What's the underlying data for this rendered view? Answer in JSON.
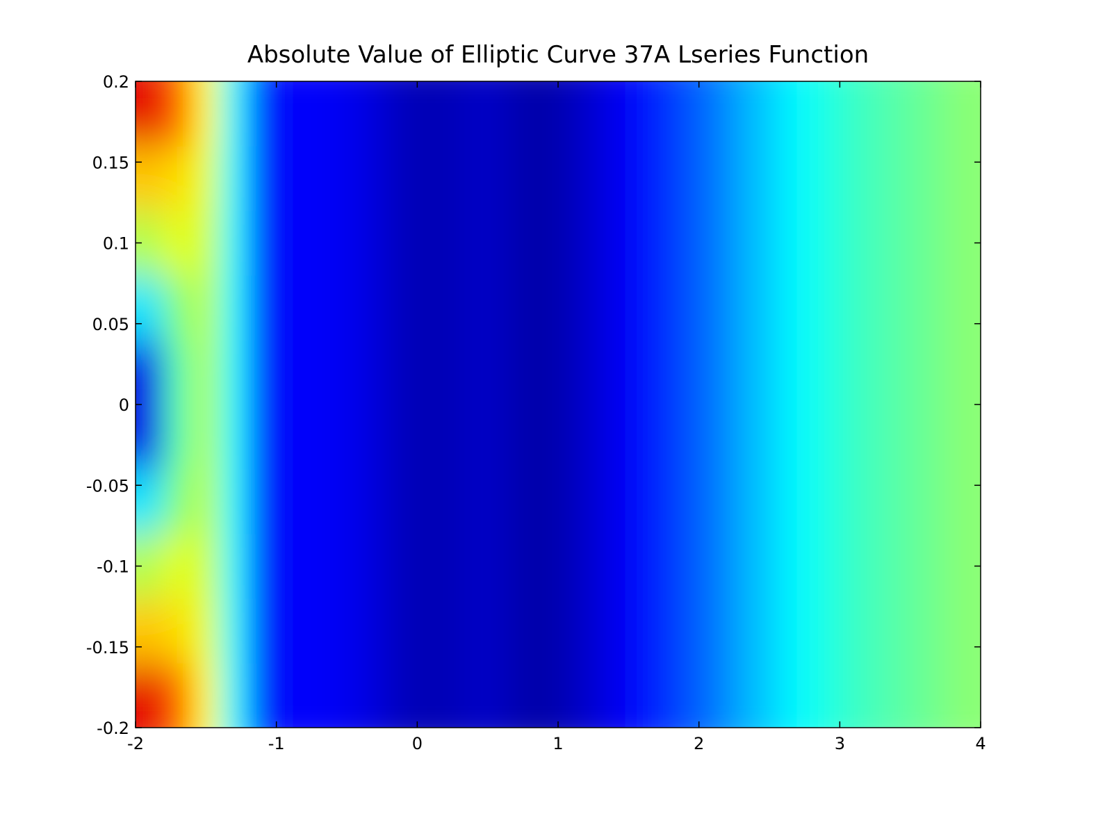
{
  "chart_data": {
    "type": "heatmap",
    "title": "Absolute Value of Elliptic Curve 37A Lseries Function",
    "colormap": "jet",
    "zlim": [
      0,
      1
    ],
    "xlim": [
      -2,
      4
    ],
    "ylim": [
      -0.2,
      0.2
    ],
    "xticks": [
      -2,
      -1,
      0,
      1,
      2,
      3,
      4
    ],
    "yticks": [
      -0.2,
      -0.15,
      -0.1,
      -0.05,
      0,
      0.05,
      0.1,
      0.15,
      0.2
    ],
    "x": [
      -1.9,
      -1.7,
      -1.5,
      -1.3,
      -1.1,
      -0.9,
      -0.7,
      -0.5,
      -0.3,
      -0.1,
      0.1,
      0.3,
      0.5,
      0.7,
      0.9,
      1.1,
      1.3,
      1.5,
      1.7,
      1.9,
      2.1,
      2.3,
      2.5,
      2.7,
      2.9,
      3.1,
      3.3,
      3.5,
      3.7,
      3.9
    ],
    "y": [
      -0.18,
      -0.14,
      -0.1,
      -0.06,
      -0.02,
      0.02,
      0.06,
      0.1,
      0.14,
      0.18
    ],
    "z": [
      [
        0.9,
        0.78,
        0.63,
        0.37,
        0.16,
        0.12,
        0.12,
        0.11,
        0.09,
        0.06,
        0.05,
        0.06,
        0.07,
        0.05,
        0.04,
        0.06,
        0.09,
        0.12,
        0.16,
        0.2,
        0.24,
        0.29,
        0.33,
        0.37,
        0.4,
        0.43,
        0.45,
        0.47,
        0.49,
        0.51
      ],
      [
        0.68,
        0.66,
        0.6,
        0.37,
        0.16,
        0.12,
        0.12,
        0.11,
        0.09,
        0.06,
        0.05,
        0.06,
        0.07,
        0.05,
        0.04,
        0.06,
        0.09,
        0.12,
        0.16,
        0.2,
        0.24,
        0.29,
        0.33,
        0.37,
        0.4,
        0.43,
        0.45,
        0.47,
        0.49,
        0.51
      ],
      [
        0.55,
        0.6,
        0.58,
        0.37,
        0.16,
        0.12,
        0.12,
        0.11,
        0.09,
        0.06,
        0.05,
        0.06,
        0.07,
        0.05,
        0.04,
        0.06,
        0.09,
        0.12,
        0.16,
        0.2,
        0.24,
        0.29,
        0.33,
        0.37,
        0.4,
        0.43,
        0.45,
        0.47,
        0.49,
        0.51
      ],
      [
        0.35,
        0.5,
        0.56,
        0.37,
        0.16,
        0.12,
        0.12,
        0.11,
        0.09,
        0.06,
        0.05,
        0.06,
        0.07,
        0.05,
        0.04,
        0.06,
        0.09,
        0.12,
        0.16,
        0.2,
        0.24,
        0.29,
        0.33,
        0.37,
        0.4,
        0.43,
        0.45,
        0.47,
        0.49,
        0.51
      ],
      [
        0.1,
        0.45,
        0.55,
        0.37,
        0.16,
        0.12,
        0.12,
        0.11,
        0.09,
        0.06,
        0.05,
        0.06,
        0.07,
        0.05,
        0.04,
        0.06,
        0.09,
        0.12,
        0.16,
        0.2,
        0.24,
        0.29,
        0.33,
        0.37,
        0.4,
        0.43,
        0.45,
        0.47,
        0.49,
        0.51
      ],
      [
        0.1,
        0.45,
        0.55,
        0.37,
        0.16,
        0.12,
        0.12,
        0.11,
        0.09,
        0.06,
        0.05,
        0.06,
        0.07,
        0.05,
        0.04,
        0.06,
        0.09,
        0.12,
        0.16,
        0.2,
        0.24,
        0.29,
        0.33,
        0.37,
        0.4,
        0.43,
        0.45,
        0.47,
        0.49,
        0.51
      ],
      [
        0.35,
        0.5,
        0.56,
        0.37,
        0.16,
        0.12,
        0.12,
        0.11,
        0.09,
        0.06,
        0.05,
        0.06,
        0.07,
        0.05,
        0.04,
        0.06,
        0.09,
        0.12,
        0.16,
        0.2,
        0.24,
        0.29,
        0.33,
        0.37,
        0.4,
        0.43,
        0.45,
        0.47,
        0.49,
        0.51
      ],
      [
        0.55,
        0.6,
        0.58,
        0.37,
        0.16,
        0.12,
        0.12,
        0.11,
        0.09,
        0.06,
        0.05,
        0.06,
        0.07,
        0.05,
        0.04,
        0.06,
        0.09,
        0.12,
        0.16,
        0.2,
        0.24,
        0.29,
        0.33,
        0.37,
        0.4,
        0.43,
        0.45,
        0.47,
        0.49,
        0.51
      ],
      [
        0.68,
        0.66,
        0.6,
        0.37,
        0.16,
        0.12,
        0.12,
        0.11,
        0.09,
        0.06,
        0.05,
        0.06,
        0.07,
        0.05,
        0.04,
        0.06,
        0.09,
        0.12,
        0.16,
        0.2,
        0.24,
        0.29,
        0.33,
        0.37,
        0.4,
        0.43,
        0.45,
        0.47,
        0.49,
        0.51
      ],
      [
        0.9,
        0.78,
        0.63,
        0.37,
        0.16,
        0.12,
        0.12,
        0.11,
        0.09,
        0.06,
        0.05,
        0.06,
        0.07,
        0.05,
        0.04,
        0.06,
        0.09,
        0.12,
        0.16,
        0.2,
        0.24,
        0.29,
        0.33,
        0.37,
        0.4,
        0.43,
        0.45,
        0.47,
        0.49,
        0.51
      ]
    ]
  }
}
